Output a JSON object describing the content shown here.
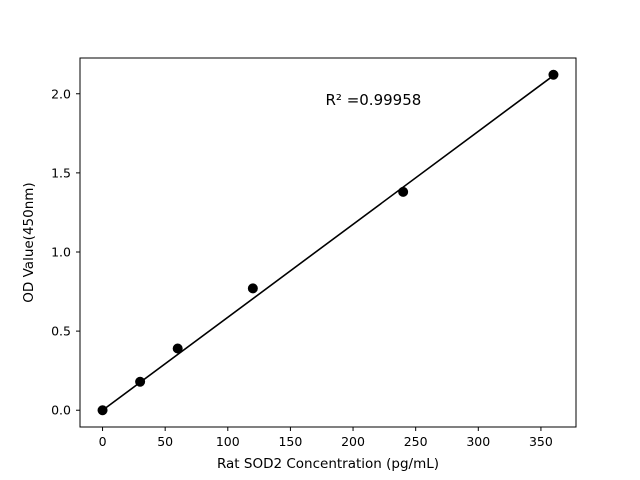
{
  "chart_data": {
    "type": "scatter",
    "title": "",
    "xlabel": "Rat SOD2 Concentration (pg/mL)",
    "ylabel": "OD Value(450nm)",
    "x": [
      0,
      30,
      60,
      120,
      240,
      360
    ],
    "y": [
      0.0,
      0.18,
      0.39,
      0.77,
      1.38,
      2.12
    ],
    "fit_line": {
      "x": [
        0,
        360
      ],
      "y": [
        0.0,
        2.115
      ]
    },
    "xlim": [
      -18,
      378
    ],
    "ylim": [
      -0.106,
      2.226
    ],
    "xticks": [
      0,
      50,
      100,
      150,
      200,
      250,
      300,
      350
    ],
    "xtick_labels": [
      "0",
      "50",
      "100",
      "150",
      "200",
      "250",
      "300",
      "350"
    ],
    "yticks": [
      0.0,
      0.5,
      1.0,
      1.5,
      2.0
    ],
    "ytick_labels": [
      "0.0",
      "0.5",
      "1.0",
      "1.5",
      "2.0"
    ],
    "annotation": {
      "text": "R² =0.99958",
      "x": 178,
      "y": 1.93
    },
    "grid": false,
    "legend": null,
    "colors": {
      "marker": "#000000",
      "line": "#000000",
      "axes": "#000000",
      "background": "#ffffff"
    },
    "marker_radius": 5,
    "line_width": 1.6
  }
}
